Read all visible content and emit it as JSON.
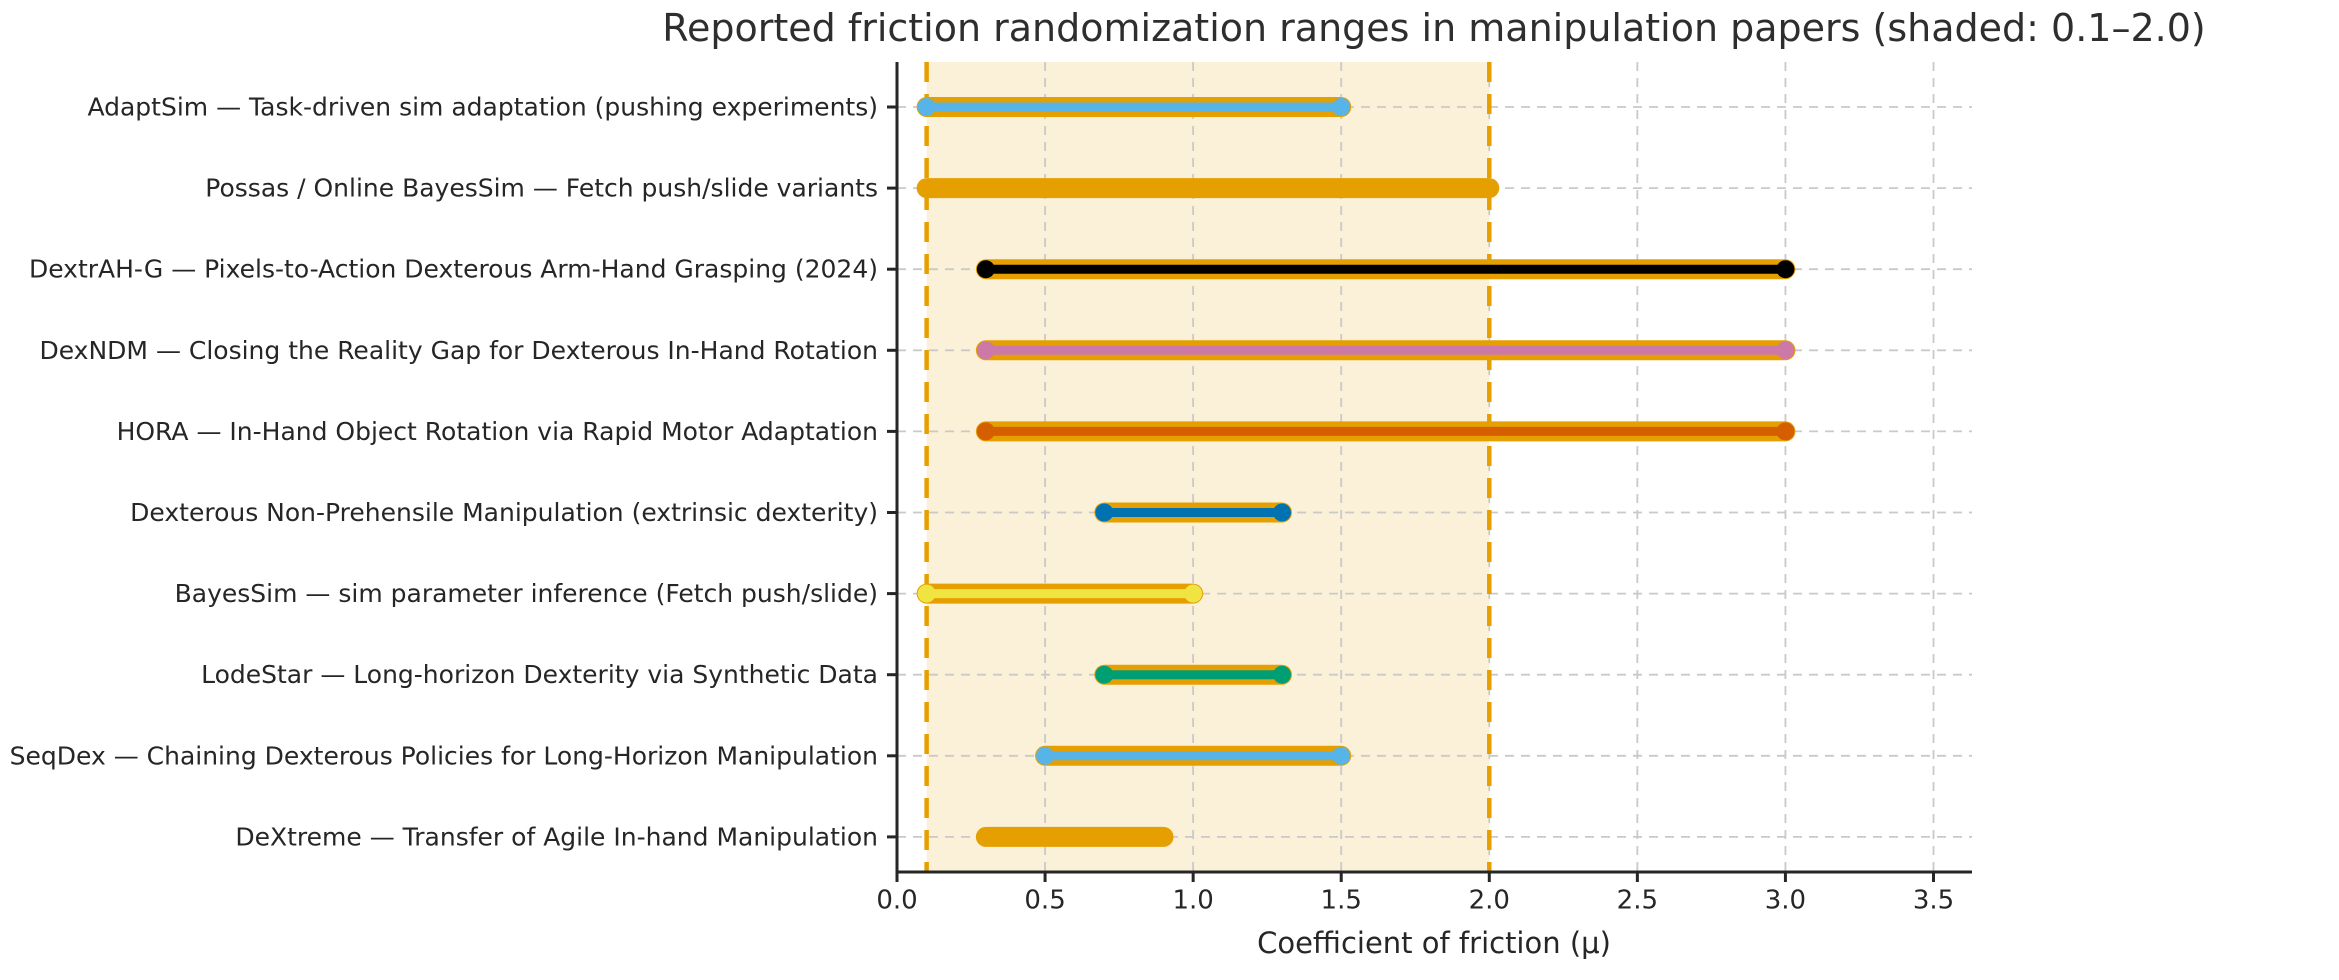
{
  "figure": {
    "background": "#ffffff",
    "text_color": "#262626"
  },
  "chart_data": {
    "type": "bar",
    "variant": "horizontal-range-bars",
    "title": "Reported friction randomization ranges in manipulation papers (shaded: 0.1–2.0)",
    "xlabel": "Coefficient of friction (μ)",
    "ylabel": "",
    "xlim": [
      0,
      3.63
    ],
    "xticks": [
      {
        "value": 0.0,
        "label": "0.0"
      },
      {
        "value": 0.5,
        "label": "0.5"
      },
      {
        "value": 1.0,
        "label": "1.0"
      },
      {
        "value": 1.5,
        "label": "1.5"
      },
      {
        "value": 2.0,
        "label": "2.0"
      },
      {
        "value": 2.5,
        "label": "2.5"
      },
      {
        "value": 3.0,
        "label": "3.0"
      },
      {
        "value": 3.5,
        "label": "3.5"
      }
    ],
    "grid": {
      "shown": true,
      "style": "dashed",
      "color": "#c9c9c9",
      "horizontal": true,
      "vertical": true
    },
    "shaded_band": {
      "from": 0.1,
      "to": 2.0,
      "note": "shaded: 0.1–2.0",
      "fill_color": "#E69F00",
      "fill_opacity": 0.15,
      "edge_color": "#E69F00",
      "edge_style": "dashed"
    },
    "range_underlay_color": "#E69F00",
    "axis_color": "#262626",
    "rows": [
      {
        "label": "AdaptSim — Task-driven sim adaptation (pushing experiments)",
        "min": 0.1,
        "max": 1.5,
        "color": "#56B4E9"
      },
      {
        "label": "Possas / Online BayesSim — Fetch push/slide variants",
        "min": 0.1,
        "max": 2.0,
        "color": "#E69F00"
      },
      {
        "label": "DextrAH-G — Pixels-to-Action Dexterous Arm-Hand Grasping (2024)",
        "min": 0.3,
        "max": 3.0,
        "color": "#000000"
      },
      {
        "label": "DexNDM — Closing the Reality Gap for Dexterous In-Hand Rotation",
        "min": 0.3,
        "max": 3.0,
        "color": "#CC79A7"
      },
      {
        "label": "HORA — In-Hand Object Rotation via Rapid Motor Adaptation",
        "min": 0.3,
        "max": 3.0,
        "color": "#D55E00"
      },
      {
        "label": "Dexterous Non-Prehensile Manipulation (extrinsic dexterity)",
        "min": 0.7,
        "max": 1.3,
        "color": "#0072B2"
      },
      {
        "label": "BayesSim — sim parameter inference (Fetch push/slide)",
        "min": 0.1,
        "max": 1.0,
        "color": "#F0E442"
      },
      {
        "label": "LodeStar — Long-horizon Dexterity via Synthetic Data",
        "min": 0.7,
        "max": 1.3,
        "color": "#009E73"
      },
      {
        "label": "SeqDex — Chaining Dexterous Policies for Long-Horizon Manipulation",
        "min": 0.5,
        "max": 1.5,
        "color": "#56B4E9"
      },
      {
        "label": "DeXtreme — Transfer of Agile In-hand Manipulation",
        "min": 0.3,
        "max": 0.9,
        "color": "#E69F00"
      }
    ]
  }
}
